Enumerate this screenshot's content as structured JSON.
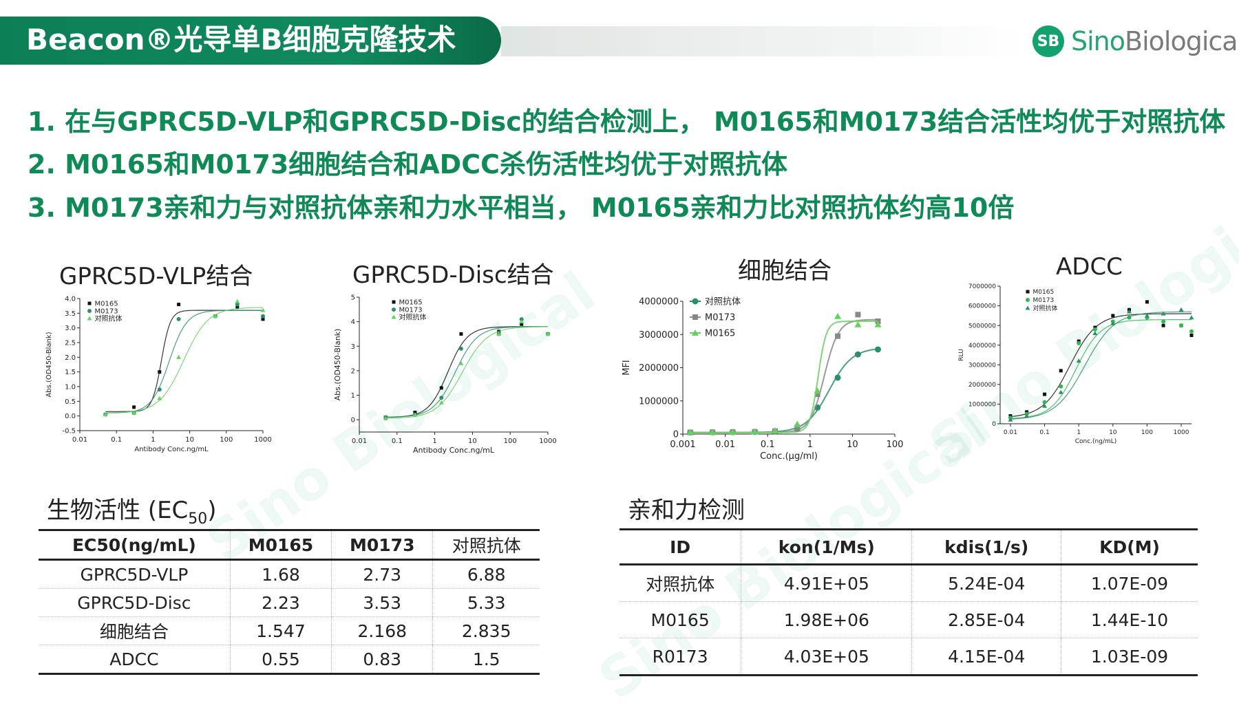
{
  "header": {
    "title": "Beacon®光导单B细胞克隆技术",
    "logo_badge": "SB",
    "logo_brand_a": "Sino",
    "logo_brand_b": "Biological",
    "watermark": "Sino Biological"
  },
  "points": [
    "1. 在与GPRC5D-VLP和GPRC5D-Disc的结合检测上， M0165和M0173结合活性均优于对照抗体",
    "2. M0165和M0173细胞结合和ADCC杀伤活性均优于对照抗体",
    "3. M0173亲和力与对照抗体亲和力水平相当， M0165亲和力比对照抗体约高10倍"
  ],
  "colors": {
    "black": "#111111",
    "gray": "#888888",
    "green": "#2db94d",
    "dark_green": "#2a8f6a",
    "light_green": "#66d060",
    "accent": "#0f8a57"
  },
  "chart_data": [
    {
      "type": "scatter",
      "title": "GPRC5D-VLP结合",
      "xlabel": "Antibody Conc.ng/mL",
      "ylabel": "Abs.(OD450-Blank)",
      "xscale": "log",
      "xlim": [
        0.01,
        1000
      ],
      "ylim": [
        -0.5,
        4.0
      ],
      "xticks": [
        "0.01",
        "0.1",
        "1",
        "10",
        "100",
        "1000"
      ],
      "yticks": [
        "-0.5",
        "0.0",
        "0.5",
        "1.0",
        "1.5",
        "2.0",
        "2.5",
        "3.0",
        "3.5",
        "4.0"
      ],
      "legend_position": "top-left",
      "series": [
        {
          "name": "M0165",
          "marker": "square",
          "color": "#111111",
          "x": [
            0.05,
            0.3,
            1.5,
            5,
            50,
            200,
            1000
          ],
          "y": [
            0.05,
            0.3,
            1.5,
            3.8,
            3.4,
            3.7,
            3.3
          ],
          "fit": {
            "bottom": 0.15,
            "top": 3.6,
            "ec50": 1.68,
            "hill": 3.5
          }
        },
        {
          "name": "M0173",
          "marker": "circle",
          "color": "#2a8f6a",
          "x": [
            0.05,
            0.3,
            1.5,
            5,
            50,
            200,
            1000
          ],
          "y": [
            0.05,
            0.1,
            0.9,
            3.3,
            3.4,
            3.8,
            3.4
          ],
          "fit": {
            "bottom": 0.1,
            "top": 3.6,
            "ec50": 2.73,
            "hill": 1.8
          }
        },
        {
          "name": "对照抗体",
          "marker": "triangle",
          "color": "#66d060",
          "x": [
            0.05,
            0.3,
            1.5,
            5,
            50,
            200,
            1000
          ],
          "y": [
            0.05,
            0.1,
            0.6,
            2.0,
            3.4,
            3.9,
            3.6
          ],
          "fit": {
            "bottom": 0.1,
            "top": 3.7,
            "ec50": 6.88,
            "hill": 1.3
          }
        }
      ]
    },
    {
      "type": "scatter",
      "title": "GPRC5D-Disc结合",
      "xlabel": "Antibody Conc.ng/mL",
      "ylabel": "Abs.(OD450-Blank)",
      "xscale": "log",
      "xlim": [
        0.01,
        1000
      ],
      "ylim": [
        -0.5,
        5
      ],
      "xticks": [
        "0.01",
        "0.1",
        "1",
        "10",
        "100",
        "1000"
      ],
      "yticks": [
        "0",
        "1",
        "2",
        "3",
        "4",
        "5"
      ],
      "legend_position": "top-left",
      "series": [
        {
          "name": "M0165",
          "marker": "square",
          "color": "#111111",
          "x": [
            0.05,
            0.3,
            1.5,
            5,
            50,
            200,
            1000
          ],
          "y": [
            0.1,
            0.3,
            1.3,
            3.5,
            3.6,
            3.9,
            3.5
          ],
          "fit": {
            "bottom": 0.1,
            "top": 3.8,
            "ec50": 2.23,
            "hill": 1.7
          }
        },
        {
          "name": "M0173",
          "marker": "circle",
          "color": "#2a8f6a",
          "x": [
            0.05,
            0.3,
            1.5,
            5,
            50,
            200,
            1000
          ],
          "y": [
            0.1,
            0.2,
            0.9,
            2.9,
            3.5,
            4.1,
            3.5
          ],
          "fit": {
            "bottom": 0.1,
            "top": 3.8,
            "ec50": 3.53,
            "hill": 1.5
          }
        },
        {
          "name": "对照抗体",
          "marker": "triangle",
          "color": "#66d060",
          "x": [
            0.05,
            0.3,
            1.5,
            5,
            50,
            200,
            1000
          ],
          "y": [
            0.05,
            0.2,
            0.7,
            2.3,
            3.5,
            4.0,
            3.5
          ],
          "fit": {
            "bottom": 0.05,
            "top": 3.8,
            "ec50": 5.33,
            "hill": 1.3
          }
        }
      ]
    },
    {
      "type": "line",
      "title": "细胞结合",
      "xlabel": "Conc.(μg/ml)",
      "ylabel": "MFI",
      "xscale": "log",
      "xlim": [
        0.001,
        100
      ],
      "ylim": [
        0,
        4000000
      ],
      "xticks": [
        "0.001",
        "0.01",
        "0.1",
        "1",
        "10",
        "100"
      ],
      "yticks": [
        "0",
        "1000000",
        "2000000",
        "3000000",
        "4000000"
      ],
      "legend_position": "top-left",
      "series": [
        {
          "name": "对照抗体",
          "marker": "circle",
          "color": "#2a8f6a",
          "x": [
            0.0015,
            0.005,
            0.015,
            0.05,
            0.15,
            0.5,
            1.5,
            4.5,
            13.5,
            40
          ],
          "y": [
            50000,
            55000,
            60000,
            65000,
            80000,
            150000,
            800000,
            1700000,
            2400000,
            2550000
          ],
          "fit": {
            "bottom": 50000,
            "top": 2600000,
            "ec50": 2.835,
            "hill": 1.6
          }
        },
        {
          "name": "M0173",
          "marker": "square",
          "color": "#888888",
          "x": [
            0.0015,
            0.005,
            0.015,
            0.05,
            0.15,
            0.5,
            1.5,
            4.5,
            13.5,
            40
          ],
          "y": [
            50000,
            55000,
            60000,
            70000,
            90000,
            200000,
            1200000,
            2950000,
            3600000,
            3400000
          ],
          "fit": {
            "bottom": 50000,
            "top": 3450000,
            "ec50": 2.168,
            "hill": 2.6
          }
        },
        {
          "name": "M0165",
          "marker": "triangle",
          "color": "#66d060",
          "x": [
            0.0015,
            0.005,
            0.015,
            0.05,
            0.15,
            0.5,
            1.5,
            4.5,
            13.5,
            40
          ],
          "y": [
            50000,
            55000,
            60000,
            70000,
            100000,
            300000,
            1300000,
            3550000,
            3300000,
            3300000
          ],
          "fit": {
            "bottom": 50000,
            "top": 3400000,
            "ec50": 1.547,
            "hill": 4.5
          }
        }
      ]
    },
    {
      "type": "scatter",
      "title": "ADCC",
      "xlabel": "Conc.(ng/mL)",
      "ylabel": "RLU",
      "xscale": "log",
      "xlim": [
        0.005,
        2000
      ],
      "ylim": [
        0,
        7000000
      ],
      "xticks": [
        "0.01",
        "0.1",
        "1",
        "10",
        "100",
        "1000"
      ],
      "yticks": [
        "0",
        "1000000",
        "2000000",
        "3000000",
        "4000000",
        "5000000",
        "6000000",
        "7000000"
      ],
      "legend_position": "top-left",
      "series": [
        {
          "name": "M0165",
          "marker": "square",
          "color": "#111111",
          "x": [
            0.01,
            0.03,
            0.1,
            0.3,
            1,
            3,
            10,
            30,
            100,
            300,
            1000,
            2000
          ],
          "y": [
            400000,
            600000,
            1500000,
            2700000,
            4200000,
            4900000,
            5500000,
            5800000,
            6200000,
            5000000,
            5000000,
            4500000
          ],
          "fit": {
            "bottom": 300000,
            "top": 5600000,
            "ec50": 0.55,
            "hill": 1.1
          }
        },
        {
          "name": "M0173",
          "marker": "circle",
          "color": "#2db94d",
          "x": [
            0.01,
            0.03,
            0.1,
            0.3,
            1,
            3,
            10,
            30,
            100,
            300,
            1000,
            2000
          ],
          "y": [
            300000,
            500000,
            1100000,
            1900000,
            4100000,
            4800000,
            5200000,
            5400000,
            5400000,
            5200000,
            5000000,
            4700000
          ],
          "fit": {
            "bottom": 250000,
            "top": 5300000,
            "ec50": 0.83,
            "hill": 1.2
          }
        },
        {
          "name": "对照抗体",
          "marker": "triangle",
          "color": "#2a8f6a",
          "x": [
            0.01,
            0.03,
            0.1,
            0.3,
            1,
            3,
            10,
            30,
            100,
            300,
            1000,
            2000
          ],
          "y": [
            200000,
            400000,
            900000,
            1600000,
            3200000,
            4600000,
            5100000,
            5700000,
            5500000,
            5600000,
            5800000,
            5400000
          ],
          "fit": {
            "bottom": 200000,
            "top": 5700000,
            "ec50": 1.5,
            "hill": 1.0
          }
        }
      ]
    }
  ],
  "bio_activity": {
    "title": "生物活性 (EC50)",
    "title_main": "生物活性 (EC",
    "title_sub": "50",
    "title_end": ")",
    "headers": [
      "EC50(ng/mL)",
      "M0165",
      "M0173",
      "对照抗体"
    ],
    "rows": [
      [
        "GPRC5D-VLP",
        "1.68",
        "2.73",
        "6.88"
      ],
      [
        "GPRC5D-Disc",
        "2.23",
        "3.53",
        "5.33"
      ],
      [
        "细胞结合",
        "1.547",
        "2.168",
        "2.835"
      ],
      [
        "ADCC",
        "0.55",
        "0.83",
        "1.5"
      ]
    ]
  },
  "affinity": {
    "title": "亲和力检测",
    "headers": [
      "ID",
      "kon(1/Ms)",
      "kdis(1/s)",
      "KD(M)"
    ],
    "rows": [
      [
        "对照抗体",
        "4.91E+05",
        "5.24E-04",
        "1.07E-09"
      ],
      [
        "M0165",
        "1.98E+06",
        "2.85E-04",
        "1.44E-10"
      ],
      [
        "R0173",
        "4.03E+05",
        "4.15E-04",
        "1.03E-09"
      ]
    ]
  }
}
